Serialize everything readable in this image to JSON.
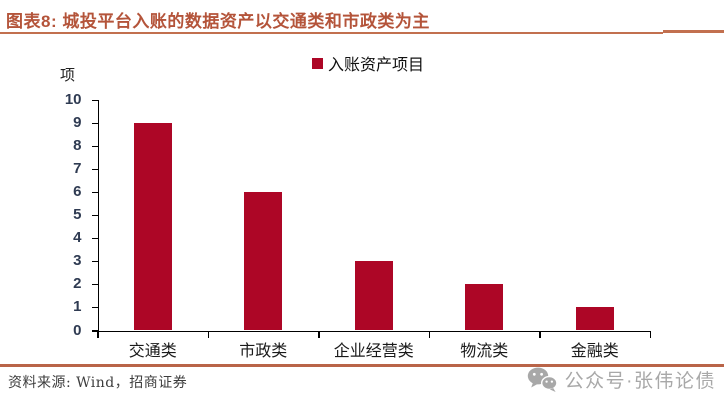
{
  "header": {
    "title": "图表8: 城投平台入账的数据资产以交通类和市政类为主"
  },
  "chart_data": {
    "type": "bar",
    "title": "城投平台入账的数据资产以交通类和市政类为主",
    "legend": [
      "入账资产项目"
    ],
    "legend_position": "top",
    "ylabel": "项",
    "xlabel": "",
    "categories": [
      "交通类",
      "市政类",
      "企业经营类",
      "物流类",
      "金融类"
    ],
    "series": [
      {
        "name": "入账资产项目",
        "values": [
          9,
          6,
          3,
          2,
          1
        ]
      }
    ],
    "ylim": [
      0,
      10
    ],
    "ytick_step": 1,
    "grid": false,
    "bar_color": "#ad0626"
  },
  "footer": {
    "source": "资料来源: Wind，招商证券",
    "watermark": "公众号·张伟论债"
  },
  "colors": {
    "accent_red": "#ad0626",
    "title_color": "#b4543a",
    "rule_color": "#c2704f",
    "axis_color": "#000000",
    "watermark_gray": "#a8a8a8"
  }
}
